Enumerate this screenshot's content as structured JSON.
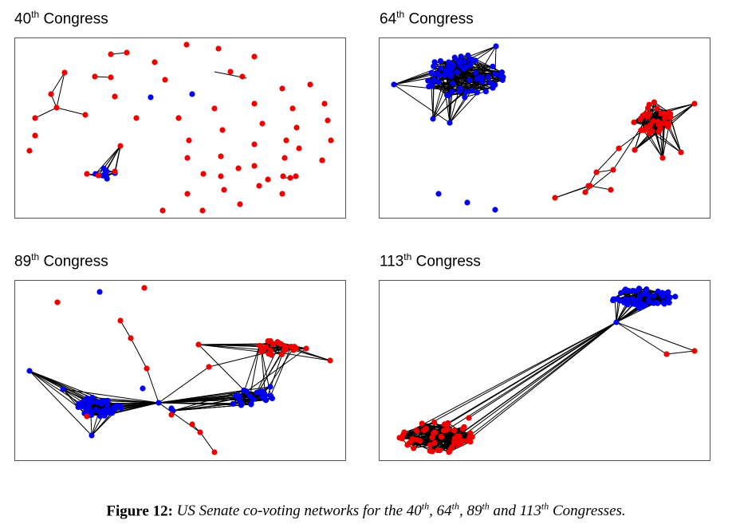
{
  "panels": [
    {
      "id": "p40",
      "num": "40",
      "sup": "th",
      "word": "Congress"
    },
    {
      "id": "p64",
      "num": "64",
      "sup": "th",
      "word": "Congress"
    },
    {
      "id": "p89",
      "num": "89",
      "sup": "th",
      "word": "Congress"
    },
    {
      "id": "p113",
      "num": "113",
      "sup": "th",
      "word": "Congress"
    }
  ],
  "caption": {
    "label": "Figure 12:",
    "part1": "US Senate co-voting networks for the 40",
    "part2": ", 64",
    "part3": ", 89",
    "part4": " and 113",
    "part5": " Congresses.",
    "sup": "th"
  },
  "colors": {
    "democrat_node": "#0000ee",
    "republican_node": "#ee0000",
    "edge": "#000000"
  }
}
